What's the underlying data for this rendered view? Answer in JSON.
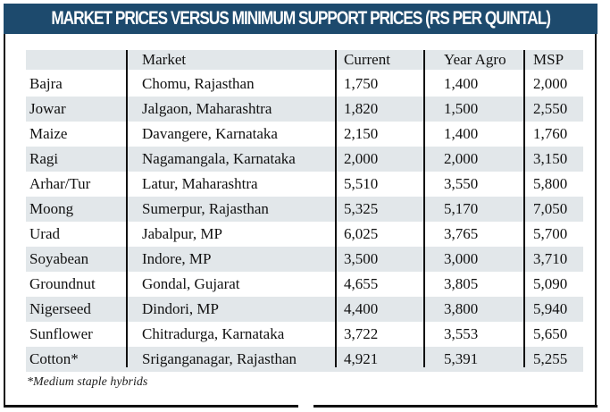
{
  "title": "Market prices versus minimum support prices (Rs per quintal)",
  "colors": {
    "title_bar": "#1d4a6d",
    "row_shade": "#e2e7ea"
  },
  "table": {
    "headers": [
      "",
      "Market",
      "Current",
      "Year Agro",
      "MSP"
    ],
    "rows": [
      {
        "crop": "Bajra",
        "market": "Chomu, Rajasthan",
        "current": "1,750",
        "year_ago": "1,400",
        "msp": "2,000"
      },
      {
        "crop": "Jowar",
        "market": "Jalgaon, Maharashtra",
        "current": "1,820",
        "year_ago": "1,500",
        "msp": "2,550"
      },
      {
        "crop": "Maize",
        "market": "Davangere, Karnataka",
        "current": "2,150",
        "year_ago": "1,400",
        "msp": "1,760"
      },
      {
        "crop": "Ragi",
        "market": "Nagamangala, Karnataka",
        "current": "2,000",
        "year_ago": "2,000",
        "msp": "3,150"
      },
      {
        "crop": "Arhar/Tur",
        "market": "Latur, Maharashtra",
        "current": "5,510",
        "year_ago": "3,550",
        "msp": "5,800"
      },
      {
        "crop": "Moong",
        "market": "Sumerpur, Rajasthan",
        "current": "5,325",
        "year_ago": "5,170",
        "msp": "7,050"
      },
      {
        "crop": "Urad",
        "market": "Jabalpur, MP",
        "current": "6,025",
        "year_ago": "3,765",
        "msp": "5,700"
      },
      {
        "crop": "Soyabean",
        "market": "Indore, MP",
        "current": "3,500",
        "year_ago": "3,000",
        "msp": "3,710"
      },
      {
        "crop": "Groundnut",
        "market": "Gondal, Gujarat",
        "current": "4,655",
        "year_ago": "3,805",
        "msp": "5,090"
      },
      {
        "crop": "Nigerseed",
        "market": "Dindori, MP",
        "current": "4,400",
        "year_ago": "3,800",
        "msp": "5,940"
      },
      {
        "crop": "Sunflower",
        "market": "Chitradurga, Karnataka",
        "current": "3,722",
        "year_ago": "3,553",
        "msp": "5,650"
      },
      {
        "crop": "Cotton*",
        "market": "Sriganganagar, Rajasthan",
        "current": "4,921",
        "year_ago": "5,391",
        "msp": "5,255"
      }
    ]
  },
  "footnote": "*Medium staple hybrids"
}
